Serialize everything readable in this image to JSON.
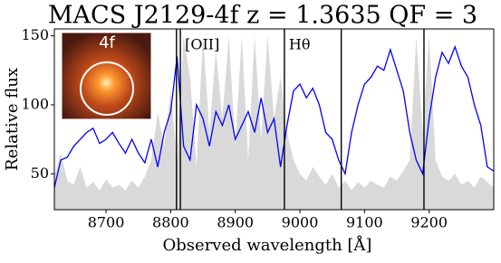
{
  "chart_data": {
    "type": "line",
    "title": "MACS J2129-4f z = 1.3635 QF = 3",
    "x_label": "Observed wavelength  [Å]",
    "y_label": "Relative flux",
    "x": [
      8620,
      8630,
      8640,
      8650,
      8660,
      8670,
      8680,
      8690,
      8700,
      8710,
      8720,
      8730,
      8740,
      8750,
      8760,
      8770,
      8780,
      8790,
      8800,
      8810,
      8820,
      8830,
      8840,
      8850,
      8860,
      8870,
      8880,
      8890,
      8900,
      8910,
      8920,
      8930,
      8940,
      8950,
      8960,
      8970,
      8980,
      8990,
      9000,
      9010,
      9020,
      9030,
      9040,
      9050,
      9060,
      9070,
      9080,
      9090,
      9100,
      9110,
      9120,
      9130,
      9140,
      9150,
      9160,
      9170,
      9180,
      9190,
      9200,
      9210,
      9220,
      9230,
      9240,
      9250,
      9260,
      9270,
      9280,
      9290,
      9300
    ],
    "series": [
      {
        "color": "#d9d9d9",
        "style": "area",
        "values": [
          48,
          65,
          45,
          42,
          55,
          40,
          44,
          38,
          46,
          40,
          42,
          38,
          45,
          40,
          48,
          60,
          95,
          70,
          110,
          60,
          150,
          120,
          55,
          150,
          80,
          140,
          90,
          150,
          70,
          150,
          60,
          150,
          75,
          150,
          90,
          120,
          80,
          60,
          50,
          45,
          55,
          48,
          42,
          50,
          40,
          45,
          38,
          44,
          40,
          45,
          42,
          40,
          48,
          45,
          52,
          60,
          150,
          80,
          150,
          60,
          48,
          45,
          50,
          42,
          45,
          40,
          48,
          44,
          40
        ]
      },
      {
        "color": "#0000ff",
        "style": "line",
        "values": [
          40,
          60,
          62,
          70,
          75,
          80,
          83,
          72,
          75,
          80,
          72,
          65,
          75,
          65,
          58,
          75,
          55,
          80,
          95,
          135,
          70,
          60,
          100,
          90,
          70,
          95,
          85,
          100,
          75,
          85,
          95,
          80,
          105,
          80,
          90,
          55,
          85,
          110,
          115,
          105,
          112,
          100,
          80,
          75,
          60,
          50,
          80,
          100,
          115,
          120,
          128,
          125,
          140,
          125,
          110,
          80,
          60,
          50,
          90,
          120,
          138,
          130,
          142,
          128,
          120,
          100,
          85,
          55,
          52
        ]
      }
    ],
    "vlines": [
      8809,
      8815,
      8976,
      9064,
      9192
    ],
    "annotations": [
      "[OII]",
      "Hθ"
    ],
    "inset_label": "4f",
    "xlim": [
      8620,
      9300
    ],
    "xticks": [
      8700,
      8800,
      8900,
      9000,
      9100,
      9200
    ],
    "ylim": [
      24,
      155
    ],
    "yticks": [
      50,
      100,
      150
    ]
  }
}
